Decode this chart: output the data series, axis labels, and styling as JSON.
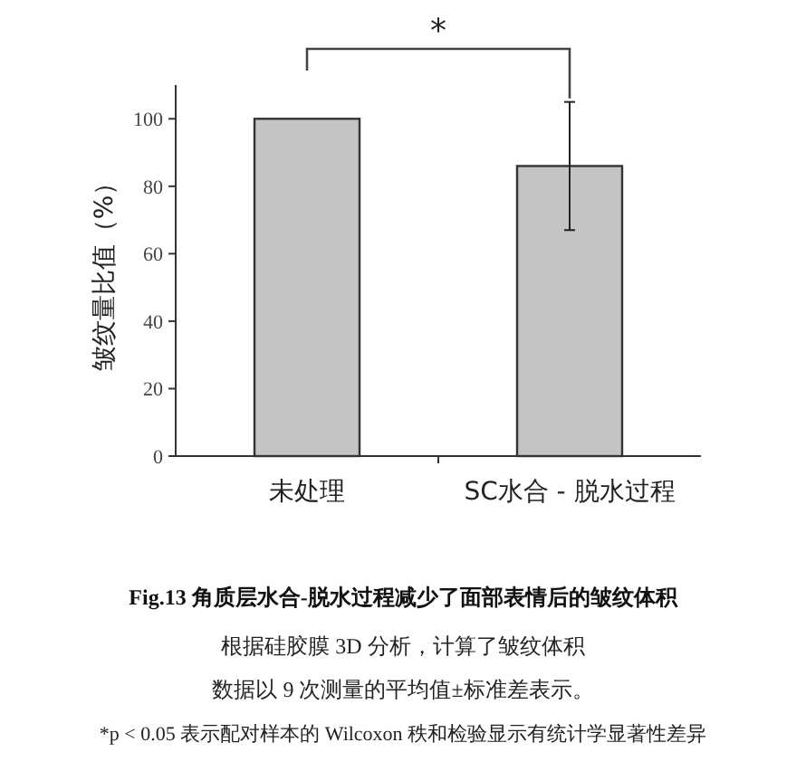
{
  "chart_data": {
    "type": "bar",
    "title": "Fig.13  角质层水合-脱水过程减少了面部表情后的皱纹体积",
    "ylabel": "皱纹量比值（%）",
    "categories": [
      "未处理",
      "SC水合 - 脱水过程"
    ],
    "values": [
      100,
      86
    ],
    "errors": [
      null,
      19
    ],
    "color": "#c4c4c4",
    "ylim": [
      0,
      110
    ],
    "yticks": [
      0,
      20,
      40,
      60,
      80,
      100
    ],
    "grid": false,
    "annotations": [
      "*",
      "根据硅胶膜 3D 分析，计算了皱纹体积",
      "数据以 9 次测量的平均值±标准差表示。",
      "*p < 0.05 表示配对样本的 Wilcoxon 秩和检验显示有统计学显著性差异"
    ]
  }
}
